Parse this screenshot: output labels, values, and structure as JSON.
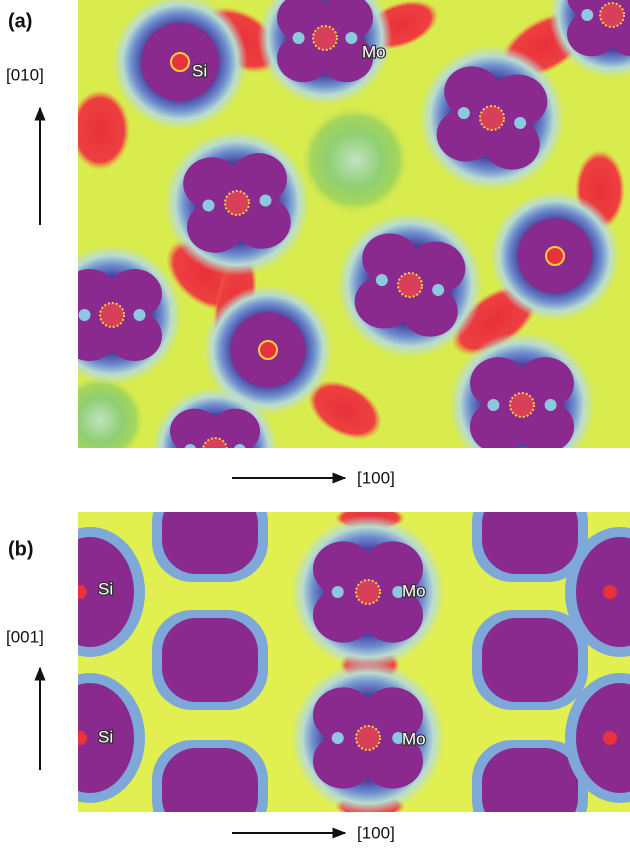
{
  "panels": [
    {
      "label": "(a)",
      "vertical_axis": "[010]",
      "horizontal_axis": "[100]",
      "atom_labels": [
        "Si",
        "Mo"
      ]
    },
    {
      "label": "(b)",
      "vertical_axis": "[001]",
      "horizontal_axis": "[100]",
      "atom_labels": [
        "Si",
        "Mo",
        "Si",
        "Mo"
      ]
    }
  ]
}
